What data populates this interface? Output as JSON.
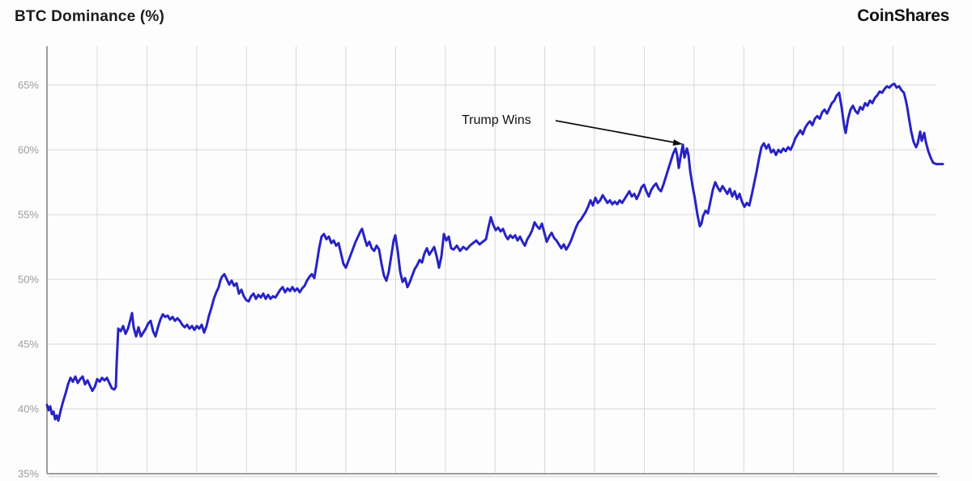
{
  "header": {
    "title": "BTC Dominance (%)",
    "logo": "CoinShares"
  },
  "colors": {
    "line": "#2823c3",
    "grid": "#d8d8d8",
    "axis": "#9e9e9e",
    "tick_label": "#9c9c9c",
    "annotation": "#111111",
    "background": "#fdfdfd"
  },
  "chart_data": {
    "type": "line",
    "title": "BTC Dominance (%)",
    "series_name": "BTC Dominance",
    "xlabel": "",
    "ylabel": "",
    "ylim": [
      35,
      68
    ],
    "yticks": [
      35,
      40,
      45,
      50,
      55,
      60,
      65
    ],
    "ytick_suffix": "%",
    "x_axis": "unlabeled time axis with 17 vertical monthly gridlines",
    "grid": "on",
    "legend": "none",
    "annotation": {
      "text": "Trump Wins",
      "points_to_value": 60.4
    },
    "points": [
      [
        58,
        40.3
      ],
      [
        60,
        39.9
      ],
      [
        62,
        40.2
      ],
      [
        64,
        39.6
      ],
      [
        66,
        39.8
      ],
      [
        68,
        39.2
      ],
      [
        70,
        39.5
      ],
      [
        72,
        39.1
      ],
      [
        75,
        39.9
      ],
      [
        78,
        40.6
      ],
      [
        81,
        41.2
      ],
      [
        84,
        41.9
      ],
      [
        87,
        42.4
      ],
      [
        90,
        42.1
      ],
      [
        93,
        42.5
      ],
      [
        96,
        42.0
      ],
      [
        99,
        42.3
      ],
      [
        102,
        42.5
      ],
      [
        105,
        41.9
      ],
      [
        108,
        42.2
      ],
      [
        111,
        41.8
      ],
      [
        114,
        41.4
      ],
      [
        117,
        41.7
      ],
      [
        120,
        42.3
      ],
      [
        123,
        42.1
      ],
      [
        126,
        42.4
      ],
      [
        129,
        42.2
      ],
      [
        132,
        42.4
      ],
      [
        135,
        42.0
      ],
      [
        138,
        41.6
      ],
      [
        141,
        41.5
      ],
      [
        143,
        41.7
      ],
      [
        144,
        43.5
      ],
      [
        146,
        46.2
      ],
      [
        149,
        46.0
      ],
      [
        152,
        46.4
      ],
      [
        155,
        45.8
      ],
      [
        158,
        46.2
      ],
      [
        161,
        46.9
      ],
      [
        163,
        47.4
      ],
      [
        165,
        46.3
      ],
      [
        168,
        45.6
      ],
      [
        171,
        46.3
      ],
      [
        174,
        45.6
      ],
      [
        177,
        45.9
      ],
      [
        180,
        46.2
      ],
      [
        183,
        46.6
      ],
      [
        186,
        46.8
      ],
      [
        189,
        46.0
      ],
      [
        192,
        45.6
      ],
      [
        195,
        46.3
      ],
      [
        198,
        46.9
      ],
      [
        201,
        47.3
      ],
      [
        204,
        47.1
      ],
      [
        207,
        47.2
      ],
      [
        210,
        46.9
      ],
      [
        213,
        47.1
      ],
      [
        216,
        46.8
      ],
      [
        219,
        47.0
      ],
      [
        222,
        46.8
      ],
      [
        225,
        46.5
      ],
      [
        228,
        46.3
      ],
      [
        231,
        46.5
      ],
      [
        234,
        46.2
      ],
      [
        237,
        46.4
      ],
      [
        240,
        46.1
      ],
      [
        243,
        46.4
      ],
      [
        246,
        46.2
      ],
      [
        249,
        46.5
      ],
      [
        252,
        45.9
      ],
      [
        255,
        46.4
      ],
      [
        258,
        47.2
      ],
      [
        261,
        47.8
      ],
      [
        264,
        48.5
      ],
      [
        267,
        49.0
      ],
      [
        270,
        49.4
      ],
      [
        272,
        49.9
      ],
      [
        274,
        50.2
      ],
      [
        277,
        50.4
      ],
      [
        280,
        50.0
      ],
      [
        283,
        49.6
      ],
      [
        286,
        49.9
      ],
      [
        289,
        49.5
      ],
      [
        292,
        49.7
      ],
      [
        295,
        48.9
      ],
      [
        298,
        49.2
      ],
      [
        301,
        48.7
      ],
      [
        304,
        48.4
      ],
      [
        307,
        48.3
      ],
      [
        310,
        48.7
      ],
      [
        313,
        48.9
      ],
      [
        316,
        48.5
      ],
      [
        319,
        48.8
      ],
      [
        322,
        48.6
      ],
      [
        325,
        48.9
      ],
      [
        328,
        48.5
      ],
      [
        331,
        48.8
      ],
      [
        334,
        48.5
      ],
      [
        337,
        48.7
      ],
      [
        340,
        48.6
      ],
      [
        343,
        48.9
      ],
      [
        346,
        49.2
      ],
      [
        349,
        49.4
      ],
      [
        352,
        49.0
      ],
      [
        355,
        49.3
      ],
      [
        358,
        49.1
      ],
      [
        361,
        49.4
      ],
      [
        364,
        49.1
      ],
      [
        367,
        49.3
      ],
      [
        370,
        49.0
      ],
      [
        373,
        49.3
      ],
      [
        376,
        49.5
      ],
      [
        379,
        49.9
      ],
      [
        382,
        50.2
      ],
      [
        385,
        50.4
      ],
      [
        388,
        50.1
      ],
      [
        391,
        51.2
      ],
      [
        394,
        52.4
      ],
      [
        397,
        53.3
      ],
      [
        400,
        53.5
      ],
      [
        403,
        53.1
      ],
      [
        406,
        53.3
      ],
      [
        409,
        52.8
      ],
      [
        412,
        53.0
      ],
      [
        415,
        52.6
      ],
      [
        418,
        52.8
      ],
      [
        421,
        52.0
      ],
      [
        424,
        51.2
      ],
      [
        427,
        50.9
      ],
      [
        430,
        51.4
      ],
      [
        433,
        51.9
      ],
      [
        436,
        52.4
      ],
      [
        439,
        52.9
      ],
      [
        442,
        53.3
      ],
      [
        445,
        53.7
      ],
      [
        447,
        53.9
      ],
      [
        450,
        53.2
      ],
      [
        453,
        52.6
      ],
      [
        456,
        52.9
      ],
      [
        459,
        52.4
      ],
      [
        462,
        52.2
      ],
      [
        465,
        52.6
      ],
      [
        468,
        52.3
      ],
      [
        471,
        51.2
      ],
      [
        474,
        50.3
      ],
      [
        477,
        49.9
      ],
      [
        480,
        50.6
      ],
      [
        483,
        51.8
      ],
      [
        486,
        53.0
      ],
      [
        488,
        53.4
      ],
      [
        491,
        52.2
      ],
      [
        494,
        50.6
      ],
      [
        497,
        49.8
      ],
      [
        500,
        50.1
      ],
      [
        503,
        49.4
      ],
      [
        506,
        49.8
      ],
      [
        509,
        50.3
      ],
      [
        512,
        50.8
      ],
      [
        515,
        51.1
      ],
      [
        518,
        51.5
      ],
      [
        521,
        51.3
      ],
      [
        524,
        52.0
      ],
      [
        527,
        52.4
      ],
      [
        530,
        51.9
      ],
      [
        533,
        52.2
      ],
      [
        536,
        52.5
      ],
      [
        539,
        51.8
      ],
      [
        542,
        50.9
      ],
      [
        545,
        51.8
      ],
      [
        548,
        53.5
      ],
      [
        551,
        53.0
      ],
      [
        554,
        53.3
      ],
      [
        557,
        52.4
      ],
      [
        560,
        52.3
      ],
      [
        564,
        52.6
      ],
      [
        568,
        52.2
      ],
      [
        572,
        52.5
      ],
      [
        576,
        52.3
      ],
      [
        580,
        52.6
      ],
      [
        584,
        52.8
      ],
      [
        588,
        53.0
      ],
      [
        592,
        52.7
      ],
      [
        596,
        52.9
      ],
      [
        600,
        53.1
      ],
      [
        603,
        54.0
      ],
      [
        606,
        54.8
      ],
      [
        609,
        54.2
      ],
      [
        612,
        53.8
      ],
      [
        615,
        54.0
      ],
      [
        618,
        53.7
      ],
      [
        621,
        53.9
      ],
      [
        624,
        53.4
      ],
      [
        627,
        53.1
      ],
      [
        630,
        53.4
      ],
      [
        633,
        53.2
      ],
      [
        636,
        53.4
      ],
      [
        639,
        53.0
      ],
      [
        642,
        53.3
      ],
      [
        645,
        52.9
      ],
      [
        648,
        52.6
      ],
      [
        651,
        53.1
      ],
      [
        654,
        53.4
      ],
      [
        657,
        53.8
      ],
      [
        660,
        54.4
      ],
      [
        663,
        54.1
      ],
      [
        666,
        53.9
      ],
      [
        669,
        54.3
      ],
      [
        672,
        53.6
      ],
      [
        675,
        52.9
      ],
      [
        678,
        53.3
      ],
      [
        681,
        53.6
      ],
      [
        684,
        53.2
      ],
      [
        687,
        53.0
      ],
      [
        690,
        52.7
      ],
      [
        693,
        52.4
      ],
      [
        696,
        52.7
      ],
      [
        699,
        52.3
      ],
      [
        702,
        52.6
      ],
      [
        705,
        53.0
      ],
      [
        708,
        53.5
      ],
      [
        711,
        54.0
      ],
      [
        714,
        54.4
      ],
      [
        717,
        54.6
      ],
      [
        720,
        54.9
      ],
      [
        723,
        55.2
      ],
      [
        726,
        55.6
      ],
      [
        729,
        56.1
      ],
      [
        732,
        55.7
      ],
      [
        735,
        56.3
      ],
      [
        738,
        55.9
      ],
      [
        741,
        56.1
      ],
      [
        744,
        56.5
      ],
      [
        747,
        56.2
      ],
      [
        750,
        55.9
      ],
      [
        753,
        56.1
      ],
      [
        756,
        55.8
      ],
      [
        759,
        56.0
      ],
      [
        762,
        55.8
      ],
      [
        765,
        56.1
      ],
      [
        768,
        55.9
      ],
      [
        771,
        56.2
      ],
      [
        774,
        56.5
      ],
      [
        777,
        56.8
      ],
      [
        780,
        56.4
      ],
      [
        783,
        56.6
      ],
      [
        786,
        56.2
      ],
      [
        789,
        56.6
      ],
      [
        792,
        57.1
      ],
      [
        795,
        57.3
      ],
      [
        798,
        56.8
      ],
      [
        801,
        56.4
      ],
      [
        804,
        56.9
      ],
      [
        807,
        57.2
      ],
      [
        810,
        57.4
      ],
      [
        813,
        57.0
      ],
      [
        816,
        56.8
      ],
      [
        819,
        57.3
      ],
      [
        822,
        57.9
      ],
      [
        825,
        58.5
      ],
      [
        828,
        59.1
      ],
      [
        831,
        59.7
      ],
      [
        834,
        60.1
      ],
      [
        836,
        59.6
      ],
      [
        838,
        58.6
      ],
      [
        840,
        59.4
      ],
      [
        843,
        60.4
      ],
      [
        845,
        59.4
      ],
      [
        848,
        60.1
      ],
      [
        850,
        59.6
      ],
      [
        852,
        58.4
      ],
      [
        855,
        57.2
      ],
      [
        858,
        56.2
      ],
      [
        861,
        55.0
      ],
      [
        864,
        54.1
      ],
      [
        866,
        54.3
      ],
      [
        868,
        54.9
      ],
      [
        871,
        55.3
      ],
      [
        874,
        55.1
      ],
      [
        877,
        56.0
      ],
      [
        880,
        56.9
      ],
      [
        883,
        57.5
      ],
      [
        886,
        57.1
      ],
      [
        889,
        56.8
      ],
      [
        892,
        57.2
      ],
      [
        895,
        56.9
      ],
      [
        898,
        56.6
      ],
      [
        901,
        57.0
      ],
      [
        904,
        56.4
      ],
      [
        907,
        56.8
      ],
      [
        910,
        56.2
      ],
      [
        913,
        56.6
      ],
      [
        916,
        56.0
      ],
      [
        919,
        55.6
      ],
      [
        922,
        55.9
      ],
      [
        925,
        55.7
      ],
      [
        928,
        56.5
      ],
      [
        931,
        57.4
      ],
      [
        934,
        58.3
      ],
      [
        937,
        59.3
      ],
      [
        940,
        60.2
      ],
      [
        943,
        60.5
      ],
      [
        946,
        60.1
      ],
      [
        949,
        60.4
      ],
      [
        952,
        59.8
      ],
      [
        955,
        60.0
      ],
      [
        958,
        59.6
      ],
      [
        961,
        60.0
      ],
      [
        964,
        59.8
      ],
      [
        967,
        60.1
      ],
      [
        970,
        59.9
      ],
      [
        973,
        60.2
      ],
      [
        976,
        60.0
      ],
      [
        979,
        60.4
      ],
      [
        982,
        60.9
      ],
      [
        985,
        61.2
      ],
      [
        988,
        61.5
      ],
      [
        991,
        61.2
      ],
      [
        994,
        61.7
      ],
      [
        997,
        62.0
      ],
      [
        1000,
        62.2
      ],
      [
        1003,
        61.9
      ],
      [
        1006,
        62.4
      ],
      [
        1009,
        62.6
      ],
      [
        1012,
        62.4
      ],
      [
        1015,
        62.9
      ],
      [
        1018,
        63.1
      ],
      [
        1021,
        62.8
      ],
      [
        1024,
        63.2
      ],
      [
        1027,
        63.6
      ],
      [
        1030,
        63.8
      ],
      [
        1033,
        64.2
      ],
      [
        1036,
        64.4
      ],
      [
        1039,
        63.3
      ],
      [
        1042,
        61.9
      ],
      [
        1044,
        61.3
      ],
      [
        1047,
        62.4
      ],
      [
        1050,
        63.1
      ],
      [
        1053,
        63.4
      ],
      [
        1056,
        63.0
      ],
      [
        1059,
        62.8
      ],
      [
        1062,
        63.3
      ],
      [
        1065,
        63.1
      ],
      [
        1068,
        63.6
      ],
      [
        1071,
        63.4
      ],
      [
        1074,
        63.8
      ],
      [
        1077,
        63.6
      ],
      [
        1080,
        64.0
      ],
      [
        1083,
        64.2
      ],
      [
        1086,
        64.5
      ],
      [
        1089,
        64.4
      ],
      [
        1092,
        64.7
      ],
      [
        1095,
        64.9
      ],
      [
        1098,
        64.8
      ],
      [
        1101,
        65.0
      ],
      [
        1104,
        65.1
      ],
      [
        1107,
        64.8
      ],
      [
        1110,
        64.9
      ],
      [
        1113,
        64.6
      ],
      [
        1116,
        64.4
      ],
      [
        1118,
        63.9
      ],
      [
        1120,
        63.3
      ],
      [
        1122,
        62.5
      ],
      [
        1125,
        61.4
      ],
      [
        1128,
        60.6
      ],
      [
        1131,
        60.2
      ],
      [
        1133,
        60.5
      ],
      [
        1136,
        61.4
      ],
      [
        1138,
        60.7
      ],
      [
        1141,
        61.3
      ],
      [
        1143,
        60.6
      ],
      [
        1146,
        59.9
      ],
      [
        1149,
        59.4
      ],
      [
        1152,
        59.0
      ],
      [
        1156,
        58.9
      ],
      [
        1160,
        58.9
      ],
      [
        1164,
        58.9
      ]
    ]
  }
}
